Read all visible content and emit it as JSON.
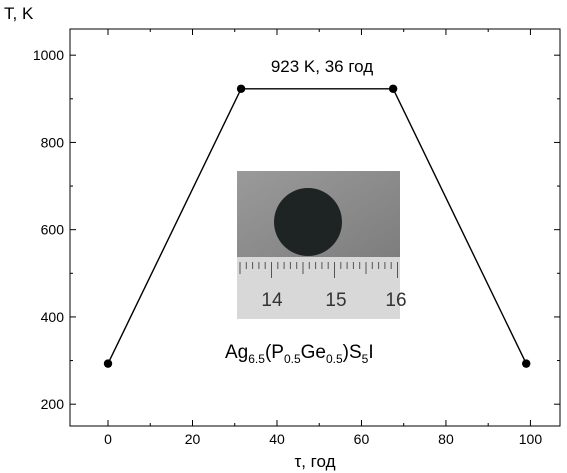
{
  "chart_data": {
    "type": "line",
    "xlabel": "τ, год",
    "ylabel": "T, K",
    "xlim": [
      -9,
      107
    ],
    "ylim": [
      150,
      1060
    ],
    "xticks": [
      0,
      20,
      40,
      60,
      80,
      100
    ],
    "yticks": [
      200,
      400,
      600,
      800,
      1000
    ],
    "grid": false,
    "series": [
      {
        "x": [
          0,
          31.5,
          67.5,
          99
        ],
        "y": [
          293,
          923,
          923,
          293
        ]
      }
    ],
    "annotation": "923 K, 36 год",
    "inset": {
      "description_icon": "sample-photo",
      "ruler_labels": [
        "14",
        "15",
        "16"
      ],
      "formula": {
        "base": "Ag",
        "s1": "6.5",
        "p1": "(P",
        "s2": "0.5",
        "p2": "Ge",
        "s3": "0.5",
        "p3": ")S",
        "s4": "5",
        "p4": "I"
      }
    },
    "colors": {
      "line": "#000000",
      "marker": "#000000",
      "ruler": "#d8d8d8",
      "photo_bg": "#8e8e8e",
      "sample": "#1e2424"
    }
  }
}
